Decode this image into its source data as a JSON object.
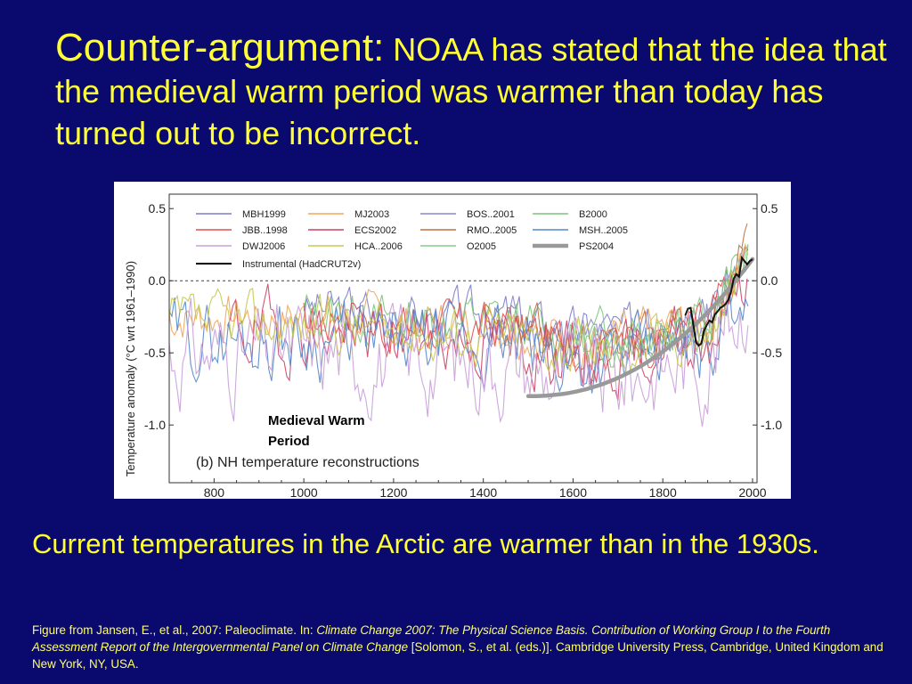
{
  "slide": {
    "title_lead": "Counter-argument:",
    "title_rest": " NOAA has stated that the idea that the medieval warm period was warmer than today has turned out to be incorrect.",
    "body": "Current temperatures in the Arctic are warmer than in the 1930s.",
    "citation_1": "Figure from Jansen, E., et al., 2007: Paleoclimate. In: ",
    "citation_2": "Climate Change 2007: The Physical Science Basis. Contribution of Working Group I to the Fourth Assessment Report of the Intergovernmental Panel on Climate Change",
    "citation_3": " [Solomon, S., et al. (eds.)]. Cambridge University Press, Cambridge, United Kingdom and New York, NY, USA.",
    "annotation": [
      "Medieval Warm",
      "Period"
    ]
  },
  "colors": {
    "background": "#0a0a6e",
    "text": "#ffff33"
  },
  "chart_data": {
    "type": "line",
    "panel_label": "(b) NH temperature reconstructions",
    "ylabel": "Temperature anomaly (°C wrt 1961–1990)",
    "xlim": [
      700,
      2010
    ],
    "ylim": [
      -1.4,
      0.6
    ],
    "xticks": [
      800,
      1000,
      1200,
      1400,
      1600,
      1800,
      2000
    ],
    "yticks_left": [
      "0.5",
      "0.0",
      "-0.5",
      "-1.0"
    ],
    "yticks_right": [
      "0.5",
      "0.0",
      "-0.5",
      "-1.0"
    ],
    "yticks_values": [
      0.5,
      0.0,
      -0.5,
      -1.0
    ],
    "zero_line": "dashed",
    "legend_placement": "top-left",
    "series": [
      {
        "name": "MBH1999",
        "color": "#7d7dc8",
        "start": 1000,
        "end": 1980,
        "base": -0.25,
        "amp": 0.08,
        "seed": 3
      },
      {
        "name": "MJ2003",
        "color": "#f2a65a",
        "start": 200,
        "end": 1980,
        "base": -0.3,
        "amp": 0.08,
        "seed": 7
      },
      {
        "name": "BOS..2001",
        "color": "#8888cc",
        "start": 1400,
        "end": 1960,
        "base": -0.3,
        "amp": 0.1,
        "seed": 11
      },
      {
        "name": "B2000",
        "color": "#7cc47c",
        "start": 1000,
        "end": 1990,
        "base": -0.28,
        "amp": 0.09,
        "seed": 13
      },
      {
        "name": "JBB..1998",
        "color": "#e05050",
        "start": 1000,
        "end": 1990,
        "base": -0.32,
        "amp": 0.08,
        "seed": 17
      },
      {
        "name": "ECS2002",
        "color": "#cc4466",
        "start": 830,
        "end": 1990,
        "base": -0.4,
        "amp": 0.14,
        "seed": 19
      },
      {
        "name": "RMO..2005",
        "color": "#c07040",
        "start": 1400,
        "end": 1990,
        "base": -0.35,
        "amp": 0.1,
        "seed": 23
      },
      {
        "name": "MSH..2005",
        "color": "#5588cc",
        "start": 200,
        "end": 1990,
        "base": -0.45,
        "amp": 0.15,
        "seed": 29
      },
      {
        "name": "DWJ2006",
        "color": "#c8a0d8",
        "start": 200,
        "end": 1990,
        "base": -0.55,
        "amp": 0.22,
        "seed": 31
      },
      {
        "name": "HCA..2006",
        "color": "#c8c850",
        "start": 200,
        "end": 1990,
        "base": -0.35,
        "amp": 0.1,
        "seed": 37
      },
      {
        "name": "O2005",
        "color": "#88cc88",
        "start": 1600,
        "end": 1990,
        "base": -0.3,
        "amp": 0.08,
        "seed": 41
      },
      {
        "name": "PS2004",
        "color": "#999999",
        "start": 1500,
        "end": 2000,
        "base": -0.8,
        "amp": 0.0,
        "seed": 43
      },
      {
        "name": "Instrumental (HadCRUT2v)",
        "color": "#000000",
        "start": 1850,
        "end": 2005,
        "base": -0.35,
        "amp": 0.05,
        "seed": 47
      }
    ]
  }
}
